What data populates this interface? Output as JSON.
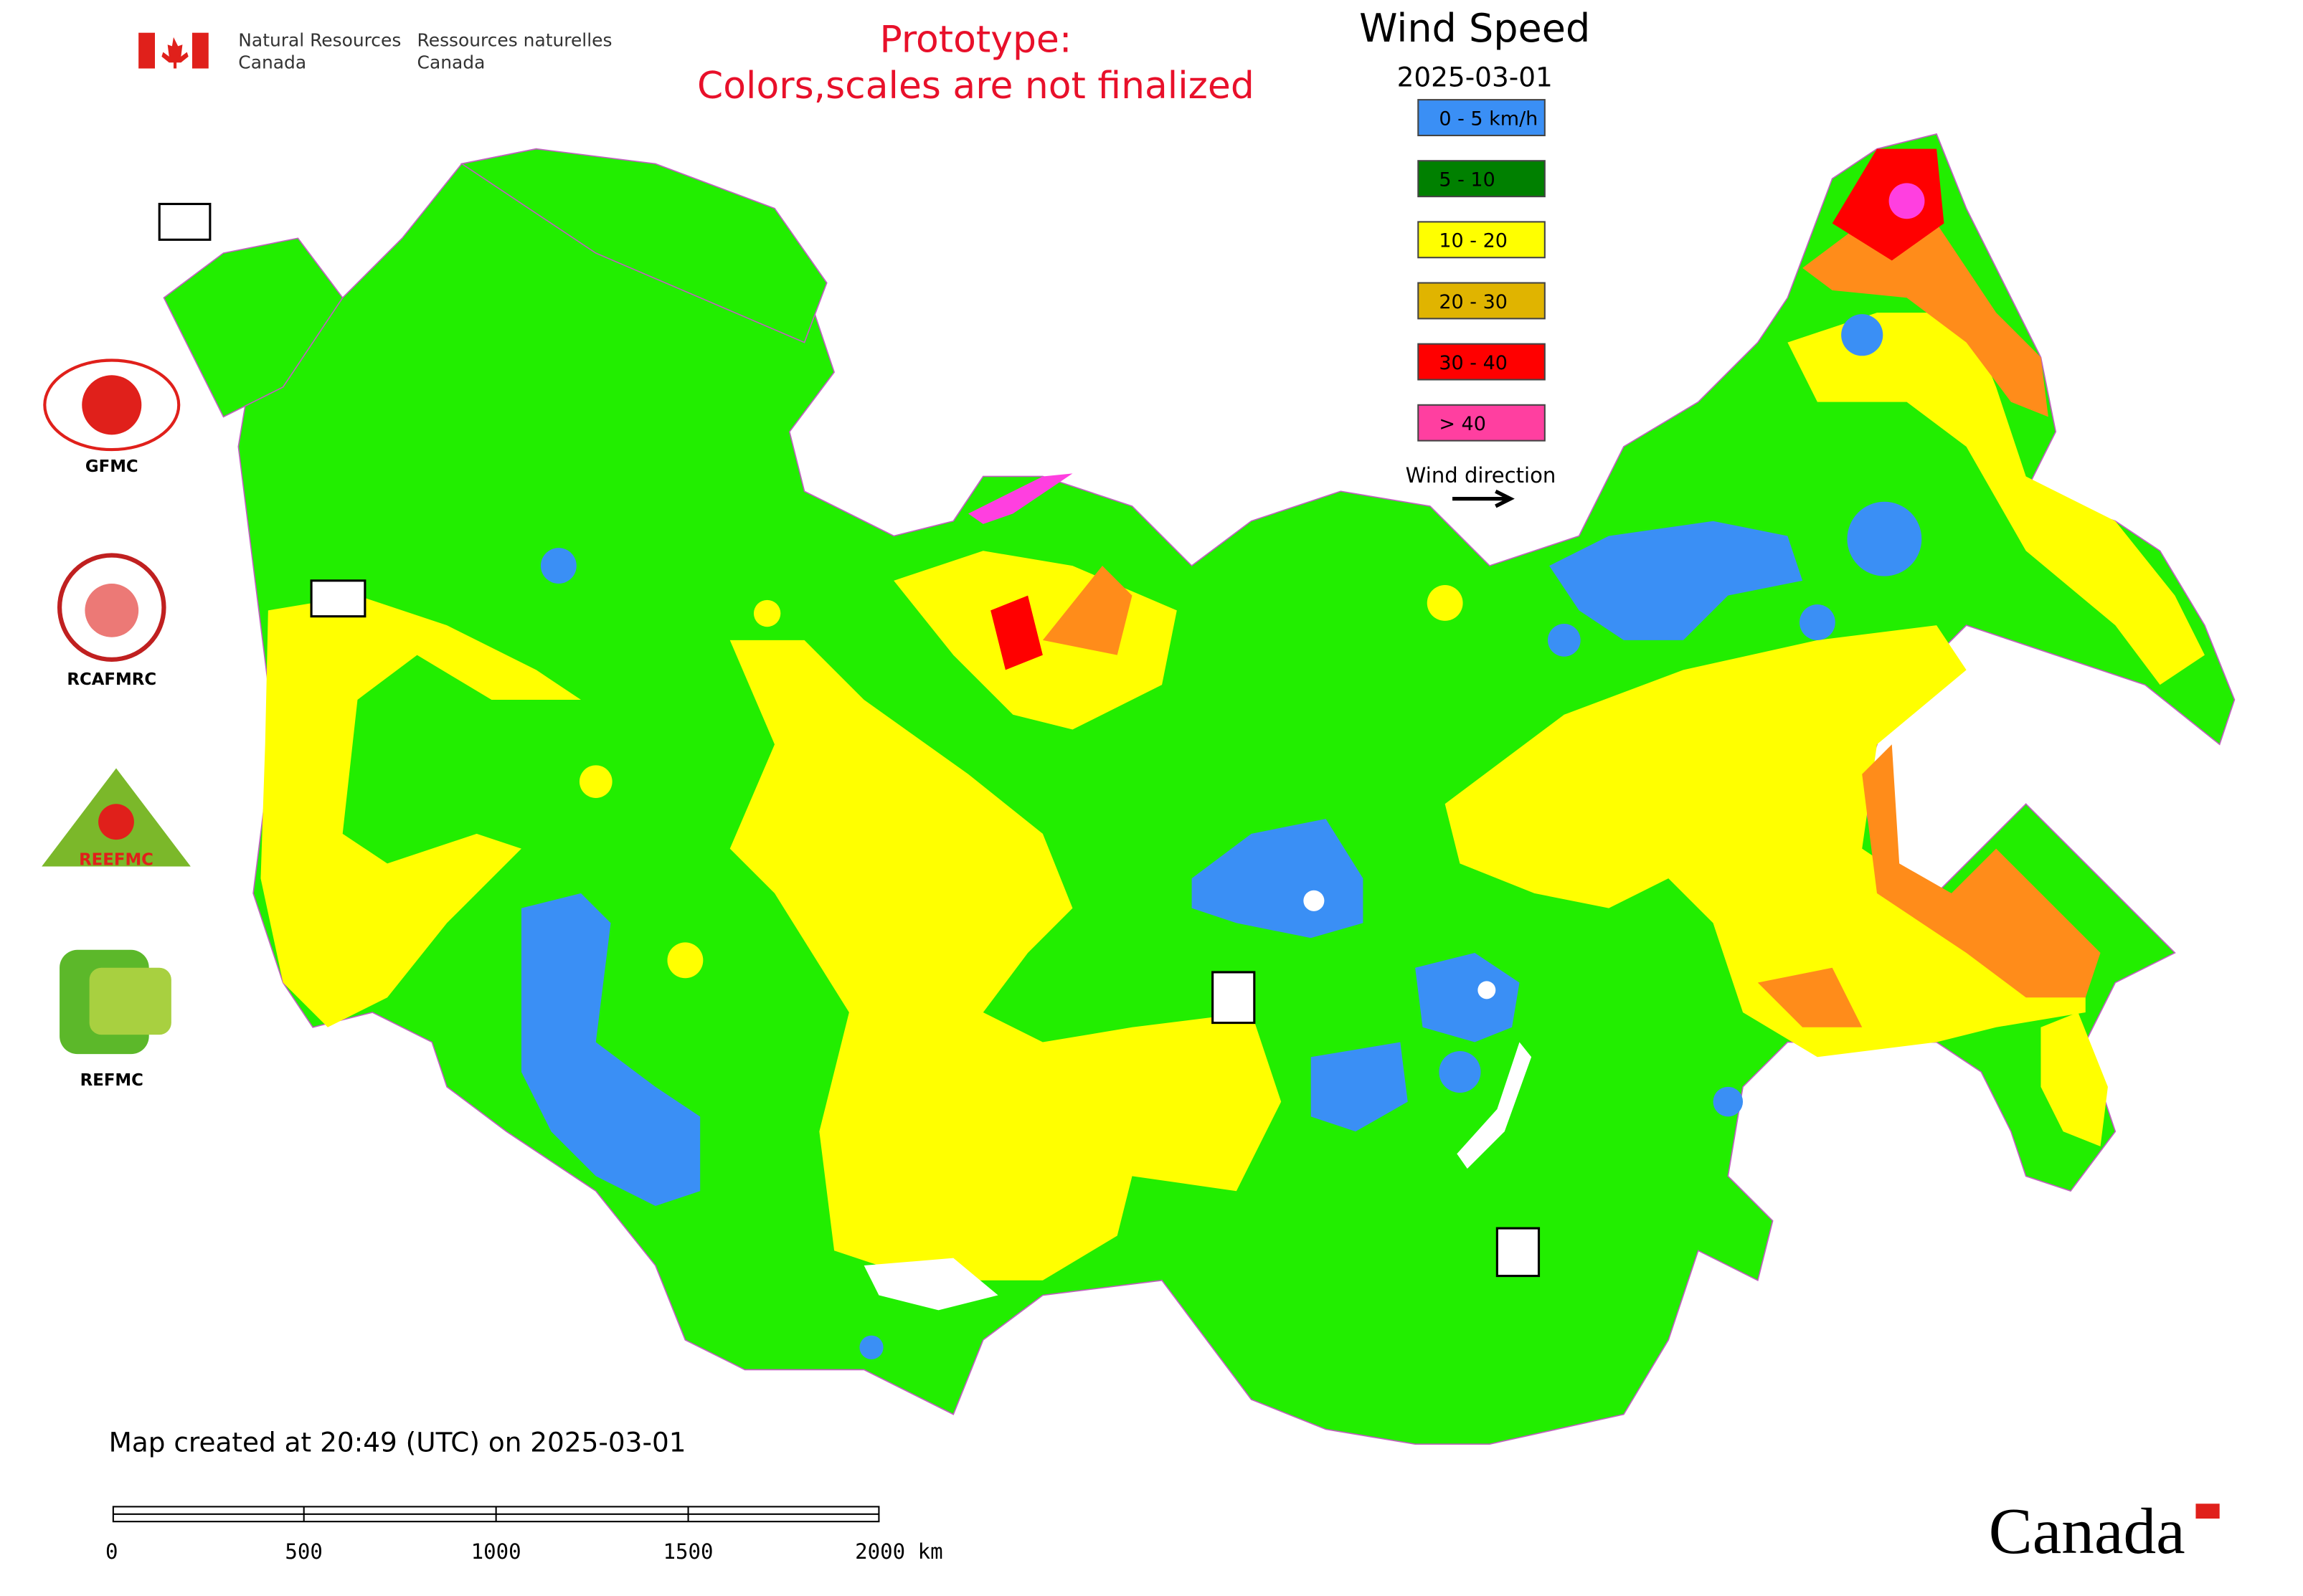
{
  "header": {
    "nrcan_en_line1": "Natural Resources",
    "nrcan_en_line2": "Canada",
    "nrcan_fr_line1": "Ressources naturelles",
    "nrcan_fr_line2": "Canada"
  },
  "notice": {
    "line1": "Prototype:",
    "line2": "Colors,scales are not finalized"
  },
  "legend": {
    "title": "Wind Speed",
    "date": "2025-03-01",
    "items": [
      {
        "label": "0 - 5 km/h",
        "color": "#3a8ff5"
      },
      {
        "label": "5 - 10",
        "color": "#008000"
      },
      {
        "label": "10 - 20",
        "color": "#ffff00"
      },
      {
        "label": "20 - 30",
        "color": "#e0b400"
      },
      {
        "label": "30 - 40",
        "color": "#ff0000"
      },
      {
        "label": "> 40",
        "color": "#ff3fa0"
      }
    ],
    "direction_label": "Wind direction"
  },
  "partners": [
    "GFMC",
    "RCAFMRC",
    "REEFMC",
    "REFMC"
  ],
  "footer": {
    "created": "Map created at 20:49 (UTC) on 2025-03-01",
    "scale_labels": [
      "0",
      "500",
      "1000",
      "1500",
      "2000 km"
    ],
    "wordmark": "Canada"
  }
}
